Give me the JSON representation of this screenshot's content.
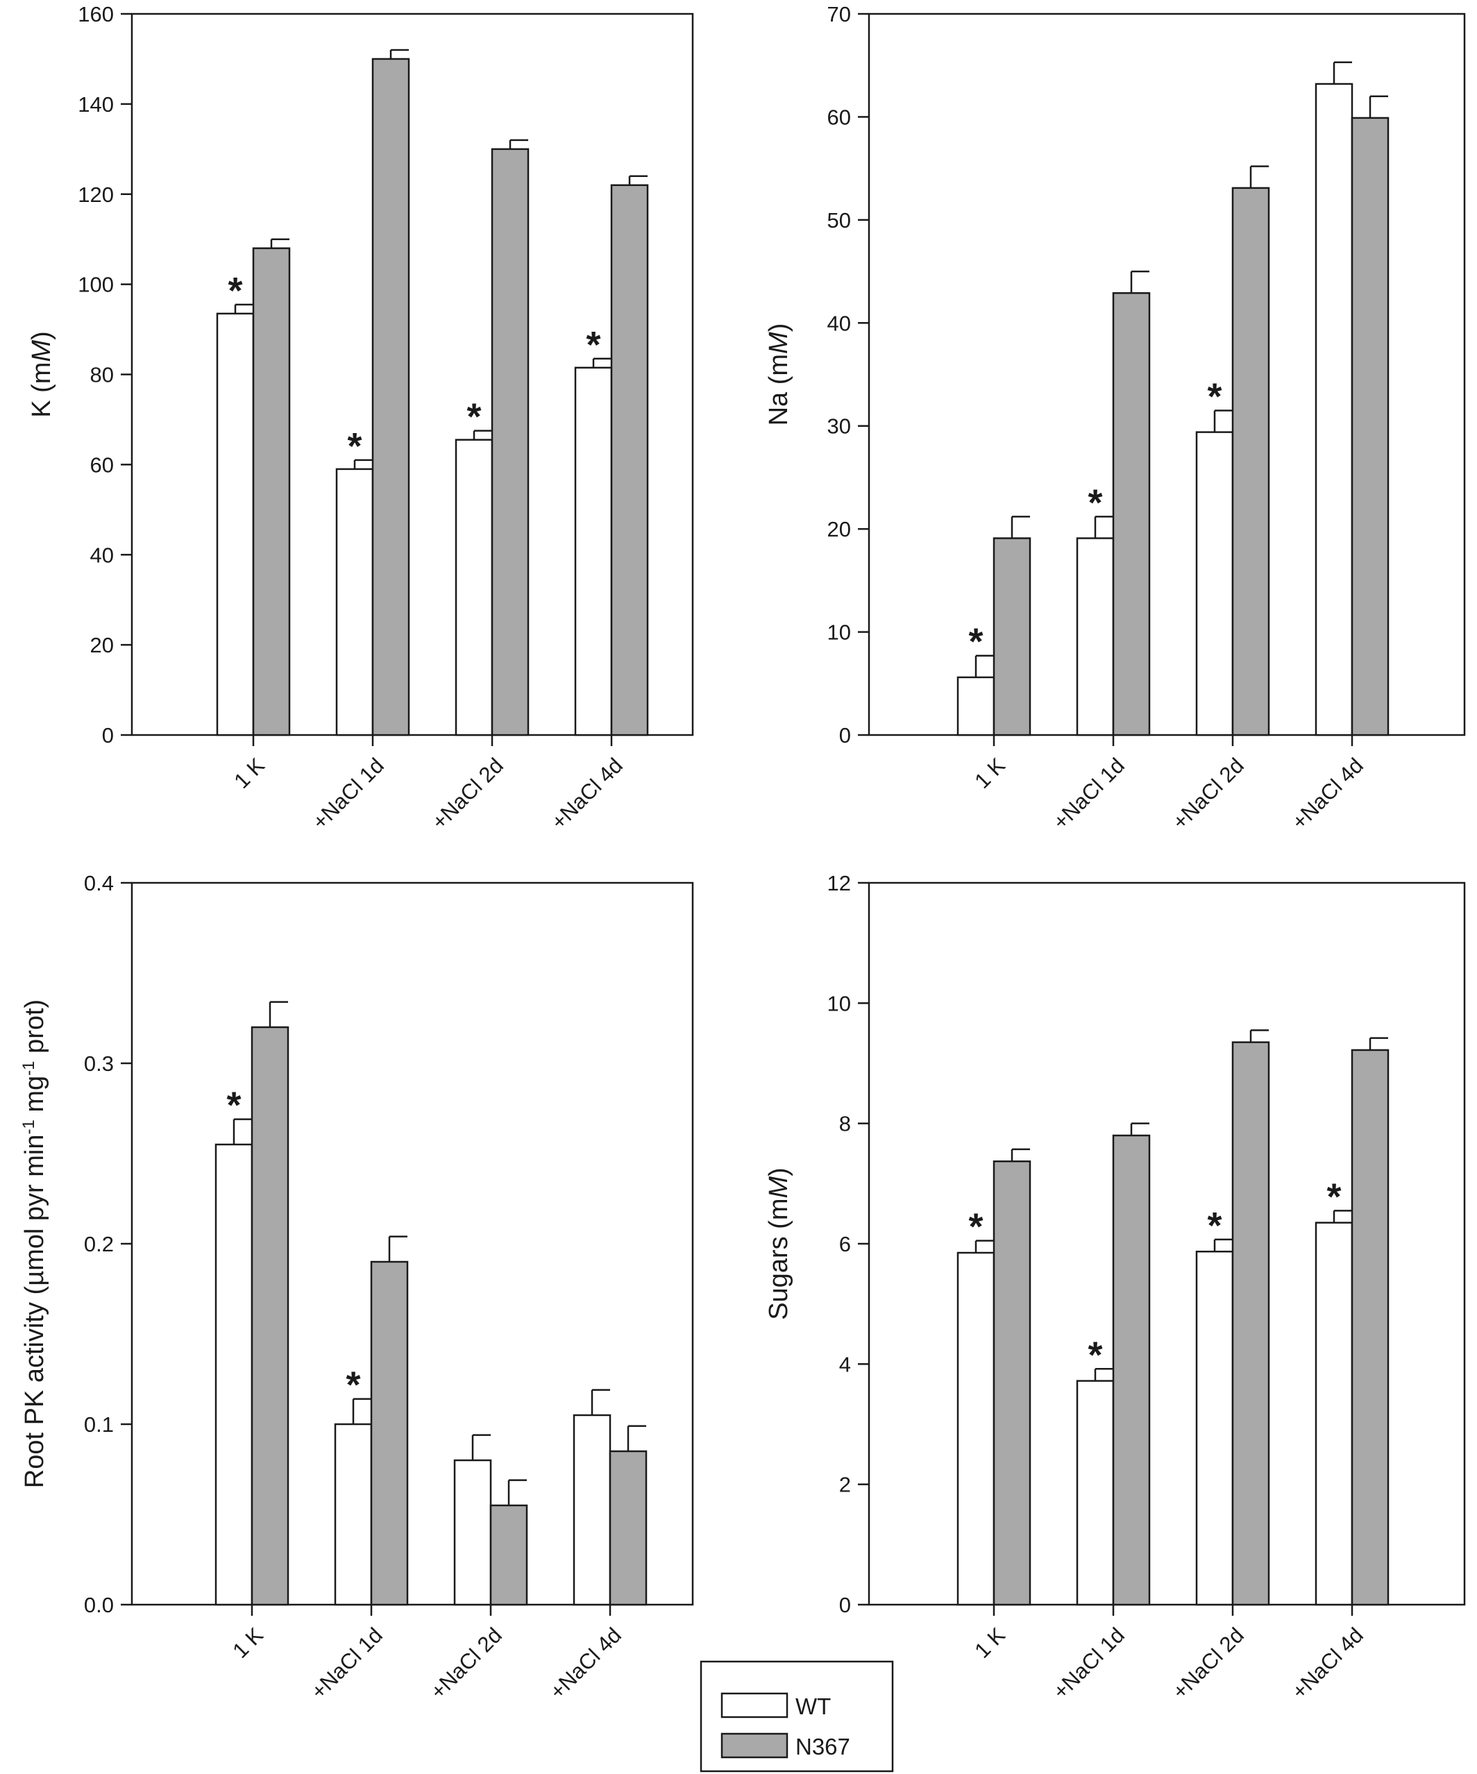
{
  "chart_data": [
    {
      "id": "k",
      "type": "bar",
      "categories": [
        "1 K",
        "+NaCl 1d",
        "+NaCl 2d",
        "+NaCl 4d"
      ],
      "series": [
        {
          "name": "WT",
          "values": [
            93.5,
            59,
            65.5,
            81.5
          ],
          "errors": [
            2,
            2,
            2,
            2
          ],
          "significant": [
            true,
            true,
            true,
            true
          ]
        },
        {
          "name": "N367",
          "values": [
            108,
            150,
            130,
            122
          ],
          "errors": [
            2,
            2,
            2,
            2
          ],
          "significant": [
            false,
            false,
            false,
            false
          ]
        }
      ],
      "ylabel": {
        "pre": "K (m",
        "italic": "M",
        "post": ")"
      },
      "ylim": [
        0,
        160
      ],
      "yticks": [
        "0",
        "20",
        "40",
        "60",
        "80",
        "100",
        "120",
        "140",
        "160"
      ],
      "significance_mark": "*"
    },
    {
      "id": "na",
      "type": "bar",
      "categories": [
        "1 K",
        "+NaCl 1d",
        "+NaCl 2d",
        "+NaCl 4d"
      ],
      "series": [
        {
          "name": "WT",
          "values": [
            5.6,
            19.1,
            29.4,
            63.2
          ],
          "errors": [
            2.1,
            2.1,
            2.1,
            2.1
          ],
          "significant": [
            true,
            true,
            true,
            false
          ]
        },
        {
          "name": "N367",
          "values": [
            19.1,
            42.9,
            53.1,
            59.9
          ],
          "errors": [
            2.1,
            2.1,
            2.1,
            2.1
          ],
          "significant": [
            false,
            false,
            false,
            false
          ]
        }
      ],
      "ylabel": {
        "pre": "Na (m",
        "italic": "M",
        "post": ")"
      },
      "ylim": [
        0,
        70
      ],
      "yticks": [
        "0",
        "10",
        "20",
        "30",
        "40",
        "50",
        "60",
        "70"
      ],
      "significance_mark": "*"
    },
    {
      "id": "pk",
      "type": "bar",
      "categories": [
        "1 K",
        "+NaCl 1d",
        "+NaCl 2d",
        "+NaCl 4d"
      ],
      "series": [
        {
          "name": "WT",
          "values": [
            0.255,
            0.1,
            0.08,
            0.105
          ],
          "errors": [
            0.014,
            0.014,
            0.014,
            0.014
          ],
          "significant": [
            true,
            true,
            false,
            false
          ]
        },
        {
          "name": "N367",
          "values": [
            0.32,
            0.19,
            0.055,
            0.085
          ],
          "errors": [
            0.014,
            0.014,
            0.014,
            0.014
          ],
          "significant": [
            false,
            false,
            false,
            false
          ]
        }
      ],
      "ylabel": {
        "pre": "Root PK activity (µmol pyr min",
        "sup1": "-1",
        "mid": " mg",
        "sup2": "-1",
        "post": " prot)"
      },
      "ylim": [
        0,
        0.4
      ],
      "yticks": [
        "0.0",
        "0.1",
        "0.2",
        "0.3",
        "0.4"
      ],
      "significance_mark": "*"
    },
    {
      "id": "sugars",
      "type": "bar",
      "categories": [
        "1 K",
        "+NaCl 1d",
        "+NaCl 2d",
        "+NaCl 4d"
      ],
      "series": [
        {
          "name": "WT",
          "values": [
            5.85,
            3.72,
            5.87,
            6.35
          ],
          "errors": [
            0.2,
            0.2,
            0.2,
            0.2
          ],
          "significant": [
            true,
            true,
            true,
            true
          ]
        },
        {
          "name": "N367",
          "values": [
            7.37,
            7.8,
            9.35,
            9.22
          ],
          "errors": [
            0.2,
            0.2,
            0.2,
            0.2
          ],
          "significant": [
            false,
            false,
            false,
            false
          ]
        }
      ],
      "ylabel": {
        "pre": "Sugars (m",
        "italic": "M",
        "post": ")"
      },
      "ylim": [
        0,
        12
      ],
      "yticks": [
        "0",
        "2",
        "4",
        "6",
        "8",
        "10",
        "12"
      ],
      "significance_mark": "*"
    }
  ],
  "legend": {
    "entries": [
      {
        "label": "WT",
        "color": "#ffffff"
      },
      {
        "label": "N367",
        "color": "#a9a9a9"
      }
    ]
  },
  "colors": {
    "wt_bar": "#ffffff",
    "n367_bar": "#a9a9a9",
    "stroke": "#1a1a1a"
  }
}
